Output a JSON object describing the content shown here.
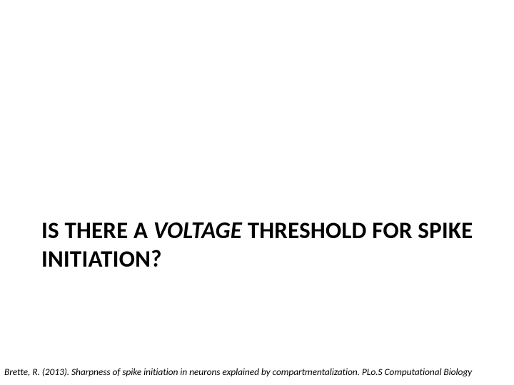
{
  "slide": {
    "title_prefix": "IS THERE A ",
    "title_italic": "VOLTAGE",
    "title_suffix": " THRESHOLD FOR SPIKE INITIATION?",
    "citation": "Brette, R. (2013). Sharpness of spike initiation in neurons explained by compartmentalization. PLo.S Computational Biology"
  },
  "style": {
    "background_color": "#ffffff",
    "title_color": "#000000",
    "title_fontsize": 33,
    "title_fontweight": 700,
    "citation_fontsize": 13.5,
    "citation_color": "#000000"
  }
}
